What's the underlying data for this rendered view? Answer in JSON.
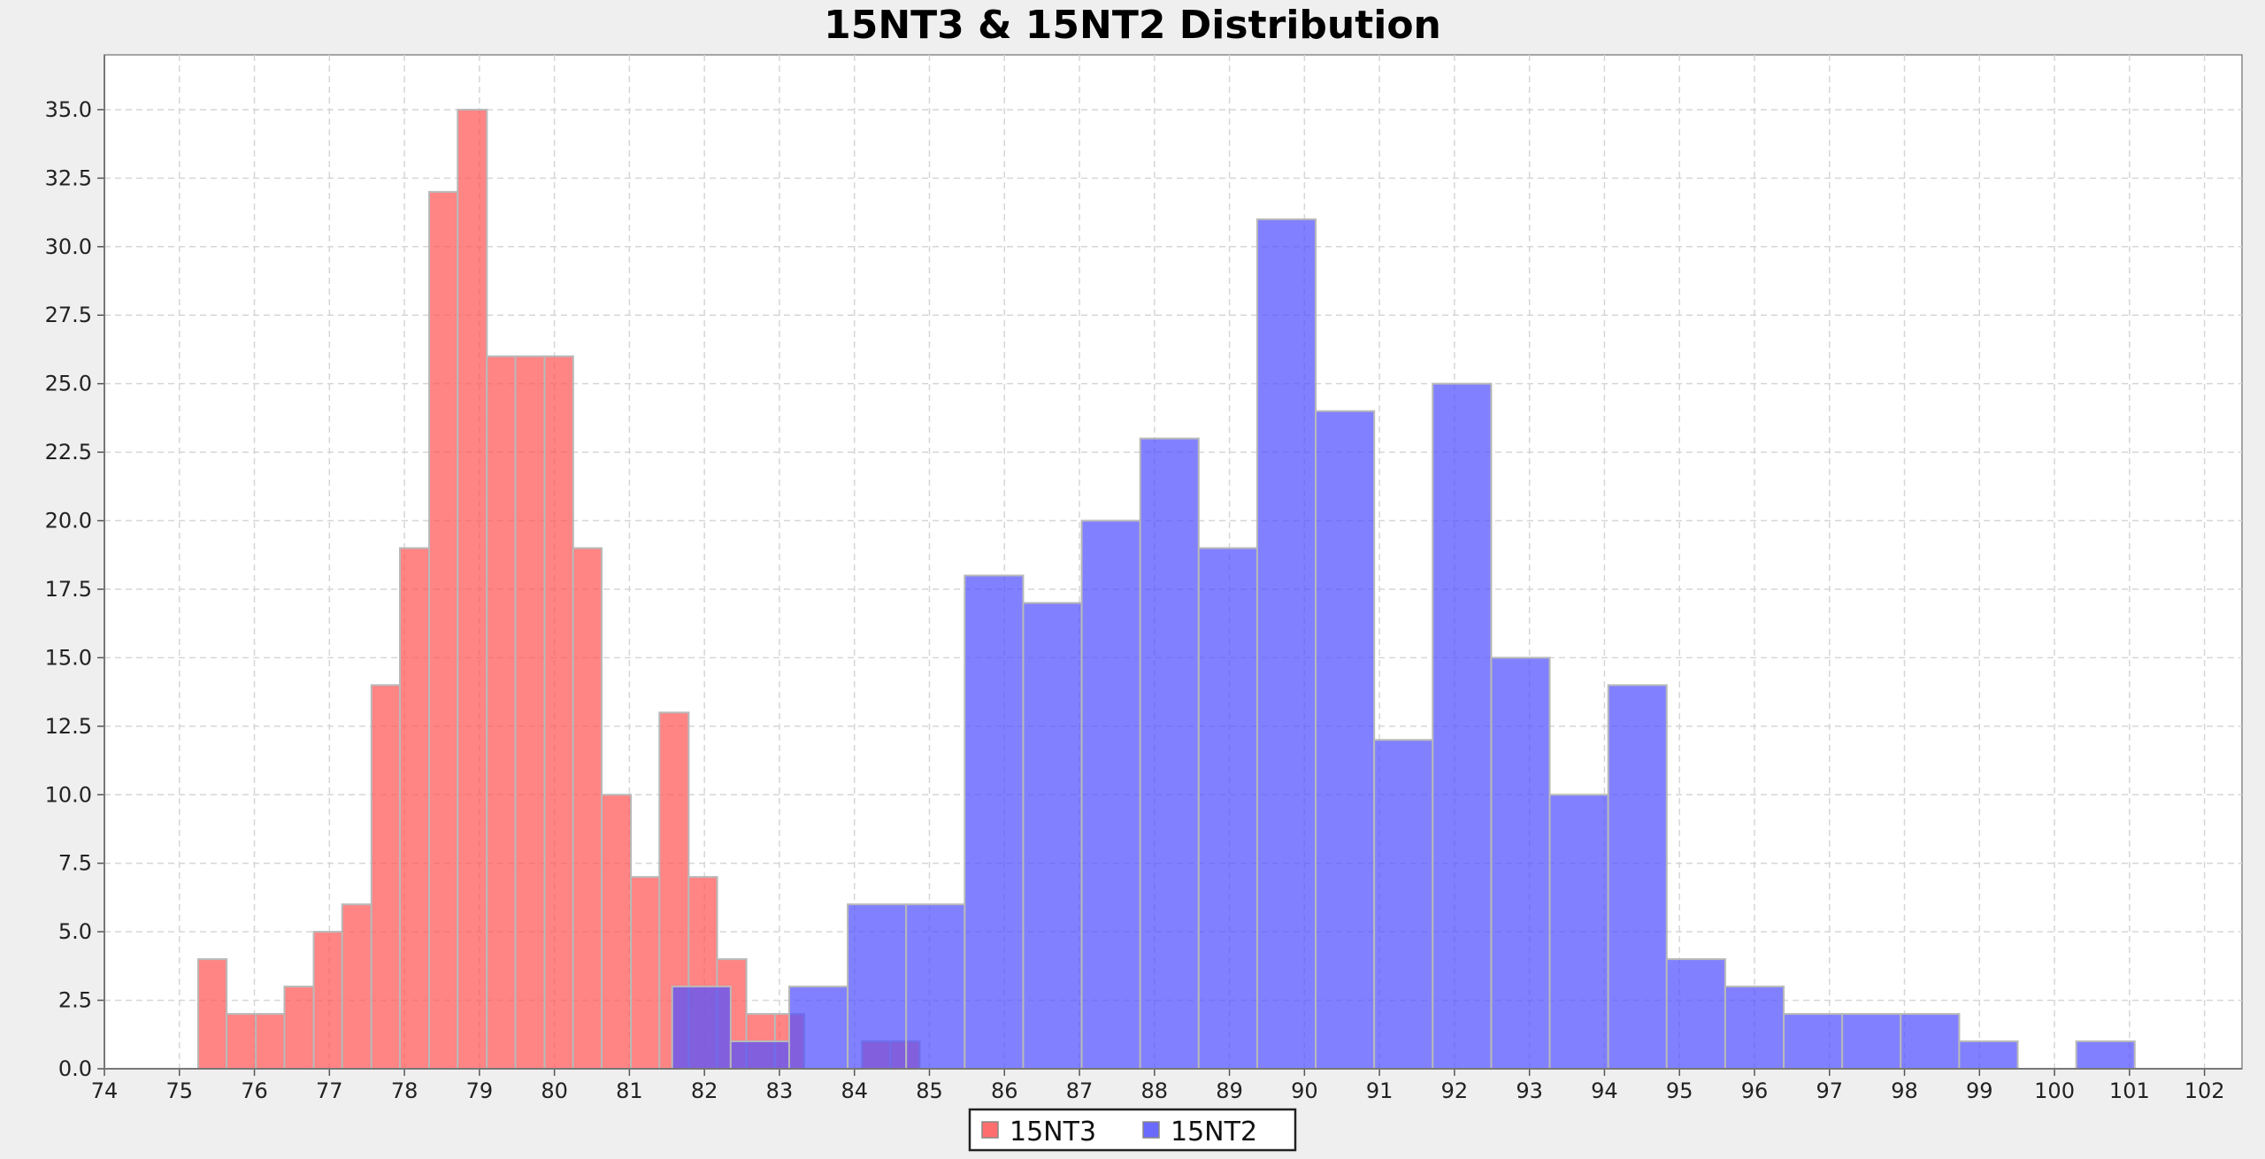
{
  "colors": {
    "background": "#efefef",
    "plot_background": "#ffffff",
    "series_15NT3": "#ff5555",
    "series_15NT2": "#5050ff"
  },
  "chart_data": {
    "type": "bar",
    "title": "15NT3 & 15NT2 Distribution",
    "xlabel": "",
    "ylabel": "",
    "xlim": [
      74,
      102.5
    ],
    "ylim": [
      0,
      37
    ],
    "grid": true,
    "legend_position": "bottom-center",
    "x_ticks": [
      "74",
      "75",
      "76",
      "77",
      "78",
      "79",
      "80",
      "81",
      "82",
      "83",
      "84",
      "85",
      "86",
      "87",
      "88",
      "89",
      "90",
      "91",
      "92",
      "93",
      "94",
      "95",
      "96",
      "97",
      "98",
      "99",
      "100",
      "101",
      "102"
    ],
    "y_ticks": [
      "0.0",
      "2.5",
      "5.0",
      "7.5",
      "10.0",
      "12.5",
      "15.0",
      "17.5",
      "20.0",
      "22.5",
      "25.0",
      "27.5",
      "30.0",
      "32.5",
      "35.0"
    ],
    "series": [
      {
        "name": "15NT3",
        "bins": [
          {
            "x0": 75.25,
            "x1": 75.63,
            "count": 4
          },
          {
            "x0": 75.63,
            "x1": 76.02,
            "count": 2
          },
          {
            "x0": 76.02,
            "x1": 76.4,
            "count": 2
          },
          {
            "x0": 76.4,
            "x1": 76.79,
            "count": 3
          },
          {
            "x0": 76.79,
            "x1": 77.17,
            "count": 5
          },
          {
            "x0": 77.17,
            "x1": 77.56,
            "count": 6
          },
          {
            "x0": 77.56,
            "x1": 77.94,
            "count": 14
          },
          {
            "x0": 77.94,
            "x1": 78.33,
            "count": 19
          },
          {
            "x0": 78.33,
            "x1": 78.71,
            "count": 32
          },
          {
            "x0": 78.71,
            "x1": 79.1,
            "count": 35
          },
          {
            "x0": 79.1,
            "x1": 79.48,
            "count": 26
          },
          {
            "x0": 79.48,
            "x1": 79.87,
            "count": 26
          },
          {
            "x0": 79.87,
            "x1": 80.25,
            "count": 26
          },
          {
            "x0": 80.25,
            "x1": 80.63,
            "count": 19
          },
          {
            "x0": 80.63,
            "x1": 81.02,
            "count": 10
          },
          {
            "x0": 81.02,
            "x1": 81.4,
            "count": 7
          },
          {
            "x0": 81.4,
            "x1": 81.79,
            "count": 13
          },
          {
            "x0": 81.79,
            "x1": 82.17,
            "count": 7
          },
          {
            "x0": 82.17,
            "x1": 82.56,
            "count": 4
          },
          {
            "x0": 82.56,
            "x1": 82.94,
            "count": 2
          },
          {
            "x0": 82.94,
            "x1": 83.33,
            "count": 2
          },
          {
            "x0": 83.33,
            "x1": 83.71,
            "count": 0
          },
          {
            "x0": 83.71,
            "x1": 84.1,
            "count": 0
          },
          {
            "x0": 84.1,
            "x1": 84.48,
            "count": 1
          },
          {
            "x0": 84.48,
            "x1": 84.87,
            "count": 1
          }
        ]
      },
      {
        "name": "15NT2",
        "bins": [
          {
            "x0": 81.57,
            "x1": 82.35,
            "count": 3
          },
          {
            "x0": 82.35,
            "x1": 83.13,
            "count": 1
          },
          {
            "x0": 83.13,
            "x1": 83.91,
            "count": 3
          },
          {
            "x0": 83.91,
            "x1": 84.69,
            "count": 6
          },
          {
            "x0": 84.69,
            "x1": 85.47,
            "count": 6
          },
          {
            "x0": 85.47,
            "x1": 86.25,
            "count": 18
          },
          {
            "x0": 86.25,
            "x1": 87.03,
            "count": 17
          },
          {
            "x0": 87.03,
            "x1": 87.81,
            "count": 20
          },
          {
            "x0": 87.81,
            "x1": 88.59,
            "count": 23
          },
          {
            "x0": 88.59,
            "x1": 89.37,
            "count": 19
          },
          {
            "x0": 89.37,
            "x1": 90.15,
            "count": 31
          },
          {
            "x0": 90.15,
            "x1": 90.93,
            "count": 24
          },
          {
            "x0": 90.93,
            "x1": 91.71,
            "count": 12
          },
          {
            "x0": 91.71,
            "x1": 92.49,
            "count": 25
          },
          {
            "x0": 92.49,
            "x1": 93.27,
            "count": 15
          },
          {
            "x0": 93.27,
            "x1": 94.05,
            "count": 10
          },
          {
            "x0": 94.05,
            "x1": 94.83,
            "count": 14
          },
          {
            "x0": 94.83,
            "x1": 95.61,
            "count": 4
          },
          {
            "x0": 95.61,
            "x1": 96.39,
            "count": 3
          },
          {
            "x0": 96.39,
            "x1": 97.17,
            "count": 2
          },
          {
            "x0": 97.17,
            "x1": 97.95,
            "count": 2
          },
          {
            "x0": 97.95,
            "x1": 98.73,
            "count": 2
          },
          {
            "x0": 98.73,
            "x1": 99.51,
            "count": 1
          },
          {
            "x0": 99.51,
            "x1": 100.29,
            "count": 0
          },
          {
            "x0": 100.29,
            "x1": 101.07,
            "count": 1
          }
        ]
      }
    ]
  }
}
